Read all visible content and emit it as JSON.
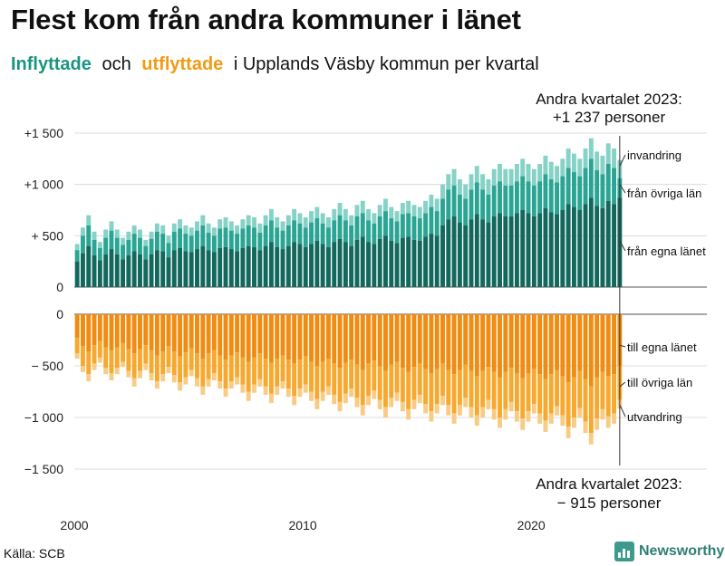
{
  "title": "Flest kom från andra kommuner i länet",
  "subtitle": {
    "inflyttade": "Inflyttade",
    "och": "och",
    "utflyttade": "utflyttade",
    "rest": "i Upplands Väsby kommun per kvartal"
  },
  "colors": {
    "egna_lanet_in": "#13685e",
    "ovriga_lan_in": "#2aa593",
    "invandring": "#86d2c7",
    "egna_lanet_out": "#ef8c11",
    "ovriga_lan_out": "#f7a82e",
    "utvandring": "#f8cc84"
  },
  "annotations": {
    "top_heading": "Andra kvartalet 2023:",
    "top_value": "+1 237 personer",
    "bottom_heading": "Andra kvartalet 2023:",
    "bottom_value": "−  915 personer"
  },
  "source": "Källa: SCB",
  "brand": "Newsworthy",
  "chart_data": {
    "type": "bar",
    "title": "Flest kom från andra kommuner i länet",
    "subtitle": "Inflyttade och utflyttade i Upplands Väsby kommun per kvartal",
    "x_start": "2000 Q1",
    "x_end": "2023 Q2",
    "x_ticks": [
      {
        "year": 2000,
        "label": "2000"
      },
      {
        "year": 2010,
        "label": "2010"
      },
      {
        "year": 2020,
        "label": "2020"
      }
    ],
    "top_yaxis": {
      "ylim": [
        0,
        1500
      ],
      "ticks": [
        {
          "value": 1500,
          "label": "+1 500"
        },
        {
          "value": 1000,
          "label": "+1 000"
        },
        {
          "value": 500,
          "label": "+  500"
        },
        {
          "value": 0,
          "label": "0"
        }
      ]
    },
    "bottom_yaxis": {
      "ylim": [
        -1500,
        0
      ],
      "ticks": [
        {
          "value": 0,
          "label": "0"
        },
        {
          "value": -500,
          "label": "−  500"
        },
        {
          "value": -1000,
          "label": "−1 000"
        },
        {
          "value": -1500,
          "label": "−1 500"
        }
      ]
    },
    "series_labels": {
      "in": [
        "från egna länet",
        "från övriga län",
        "invandring"
      ],
      "out": [
        "till egna länet",
        "till övriga län",
        "utvandring"
      ]
    },
    "inflyttade_total": [
      420,
      580,
      700,
      540,
      440,
      560,
      640,
      560,
      480,
      540,
      600,
      560,
      460,
      540,
      620,
      600,
      500,
      620,
      660,
      600,
      580,
      640,
      700,
      620,
      580,
      660,
      680,
      640,
      600,
      660,
      700,
      680,
      620,
      700,
      760,
      680,
      640,
      700,
      760,
      720,
      680,
      740,
      780,
      720,
      680,
      760,
      820,
      760,
      700,
      800,
      840,
      760,
      720,
      800,
      860,
      780,
      740,
      820,
      840,
      800,
      780,
      840,
      900,
      860,
      1000,
      1100,
      1150,
      1050,
      1000,
      1100,
      1180,
      1100,
      1050,
      1150,
      1200,
      1150,
      1150,
      1200,
      1250,
      1200,
      1150,
      1200,
      1280,
      1220,
      1180,
      1250,
      1350,
      1300,
      1250,
      1350,
      1450,
      1320,
      1280,
      1400,
      1350,
      1237
    ],
    "inflyttade_ovriga_lan_cum": [
      360,
      500,
      600,
      460,
      380,
      480,
      550,
      480,
      410,
      460,
      520,
      480,
      400,
      470,
      540,
      520,
      430,
      540,
      570,
      520,
      500,
      550,
      600,
      530,
      500,
      570,
      580,
      550,
      520,
      570,
      600,
      580,
      530,
      600,
      650,
      580,
      550,
      600,
      650,
      620,
      580,
      630,
      670,
      620,
      580,
      650,
      700,
      650,
      600,
      690,
      720,
      650,
      620,
      690,
      740,
      670,
      640,
      710,
      720,
      690,
      670,
      720,
      780,
      740,
      860,
      950,
      990,
      900,
      860,
      950,
      1020,
      950,
      900,
      990,
      1030,
      990,
      990,
      1030,
      1080,
      1030,
      990,
      1030,
      1100,
      1050,
      1020,
      1080,
      1160,
      1120,
      1080,
      1160,
      1250,
      1140,
      1100,
      1200,
      1160,
      1060
    ],
    "inflyttade_egna_lanet": [
      250,
      330,
      400,
      310,
      260,
      320,
      370,
      320,
      270,
      310,
      350,
      320,
      270,
      320,
      360,
      350,
      290,
      360,
      380,
      350,
      340,
      370,
      400,
      360,
      340,
      380,
      390,
      370,
      350,
      380,
      400,
      390,
      360,
      400,
      440,
      390,
      370,
      400,
      440,
      420,
      390,
      420,
      450,
      420,
      390,
      440,
      470,
      440,
      400,
      460,
      490,
      440,
      420,
      470,
      500,
      450,
      430,
      480,
      490,
      460,
      450,
      490,
      520,
      500,
      600,
      660,
      690,
      630,
      600,
      660,
      710,
      660,
      630,
      690,
      720,
      690,
      690,
      720,
      750,
      720,
      690,
      720,
      770,
      730,
      710,
      750,
      810,
      780,
      750,
      810,
      870,
      790,
      770,
      840,
      810,
      870
    ],
    "utflyttade_total": [
      -430,
      -560,
      -650,
      -540,
      -470,
      -580,
      -640,
      -580,
      -510,
      -610,
      -700,
      -620,
      -540,
      -640,
      -720,
      -650,
      -570,
      -660,
      -740,
      -680,
      -600,
      -700,
      -780,
      -700,
      -640,
      -720,
      -800,
      -720,
      -680,
      -760,
      -840,
      -760,
      -700,
      -780,
      -860,
      -780,
      -720,
      -800,
      -880,
      -800,
      -760,
      -840,
      -920,
      -840,
      -780,
      -870,
      -940,
      -860,
      -800,
      -900,
      -980,
      -880,
      -820,
      -920,
      -1000,
      -900,
      -840,
      -940,
      -1020,
      -920,
      -860,
      -960,
      -1040,
      -960,
      -880,
      -980,
      -1060,
      -980,
      -900,
      -1000,
      -1080,
      -1000,
      -920,
      -1020,
      -1100,
      -1020,
      -940,
      -1040,
      -1120,
      -1040,
      -960,
      -1060,
      -1140,
      -1060,
      -980,
      -1080,
      -1200,
      -1100,
      -1000,
      -1150,
      -1260,
      -1120,
      -1020,
      -1100,
      -1060,
      -915
    ],
    "utflyttade_ovriga_lan_cum": [
      -380,
      -500,
      -580,
      -480,
      -420,
      -520,
      -570,
      -520,
      -460,
      -550,
      -620,
      -550,
      -480,
      -570,
      -650,
      -580,
      -510,
      -590,
      -660,
      -610,
      -540,
      -620,
      -700,
      -630,
      -570,
      -650,
      -720,
      -650,
      -610,
      -680,
      -750,
      -680,
      -630,
      -700,
      -770,
      -700,
      -650,
      -720,
      -790,
      -720,
      -680,
      -750,
      -820,
      -750,
      -700,
      -780,
      -850,
      -770,
      -720,
      -810,
      -880,
      -790,
      -740,
      -830,
      -900,
      -810,
      -760,
      -850,
      -920,
      -830,
      -780,
      -870,
      -940,
      -870,
      -790,
      -880,
      -960,
      -880,
      -810,
      -900,
      -980,
      -900,
      -830,
      -920,
      -1000,
      -920,
      -850,
      -940,
      -1010,
      -940,
      -870,
      -960,
      -1030,
      -960,
      -890,
      -980,
      -1090,
      -1000,
      -910,
      -1040,
      -1150,
      -1010,
      -920,
      -990,
      -960,
      -830
    ],
    "utflyttade_egna_lanet": [
      -230,
      -310,
      -360,
      -300,
      -260,
      -320,
      -350,
      -320,
      -280,
      -340,
      -380,
      -340,
      -300,
      -350,
      -400,
      -360,
      -310,
      -360,
      -410,
      -370,
      -330,
      -380,
      -430,
      -380,
      -350,
      -400,
      -440,
      -400,
      -370,
      -420,
      -460,
      -420,
      -380,
      -430,
      -470,
      -430,
      -400,
      -440,
      -480,
      -440,
      -410,
      -460,
      -500,
      -460,
      -430,
      -480,
      -520,
      -470,
      -440,
      -490,
      -540,
      -480,
      -450,
      -500,
      -550,
      -490,
      -460,
      -520,
      -560,
      -510,
      -480,
      -530,
      -570,
      -530,
      -480,
      -540,
      -580,
      -540,
      -490,
      -550,
      -600,
      -550,
      -510,
      -560,
      -610,
      -560,
      -520,
      -570,
      -620,
      -570,
      -530,
      -580,
      -630,
      -580,
      -540,
      -600,
      -660,
      -610,
      -550,
      -630,
      -700,
      -610,
      -560,
      -600,
      -580,
      -500
    ]
  }
}
